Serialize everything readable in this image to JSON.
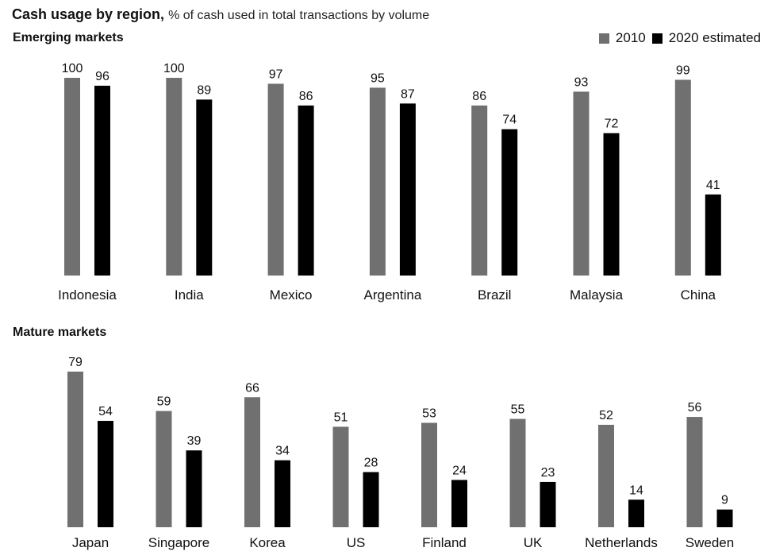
{
  "title": "Cash usage by region,",
  "subtitle": "% of cash used in total transactions by volume",
  "legend": {
    "series_2010": "2010",
    "series_2020": "2020 estimated",
    "color_2010": "#707070",
    "color_2020": "#000000"
  },
  "chart_data": [
    {
      "type": "bar",
      "title": "Emerging markets",
      "categories": [
        "Indonesia",
        "India",
        "Mexico",
        "Argentina",
        "Brazil",
        "Malaysia",
        "China"
      ],
      "series": [
        {
          "name": "2010",
          "values": [
            100,
            100,
            97,
            95,
            86,
            93,
            99
          ]
        },
        {
          "name": "2020 estimated",
          "values": [
            96,
            89,
            86,
            87,
            74,
            72,
            41
          ]
        }
      ],
      "ylim": [
        0,
        100
      ],
      "grid": false,
      "legend_position": "top-right"
    },
    {
      "type": "bar",
      "title": "Mature markets",
      "categories": [
        "Japan",
        "Singapore",
        "Korea",
        "US",
        "Finland",
        "UK",
        "Netherlands",
        "Sweden"
      ],
      "series": [
        {
          "name": "2010",
          "values": [
            79,
            59,
            66,
            51,
            53,
            55,
            52,
            56
          ]
        },
        {
          "name": "2020 estimated",
          "values": [
            54,
            39,
            34,
            28,
            24,
            23,
            14,
            9
          ]
        }
      ],
      "ylim": [
        0,
        79
      ],
      "grid": false
    }
  ]
}
